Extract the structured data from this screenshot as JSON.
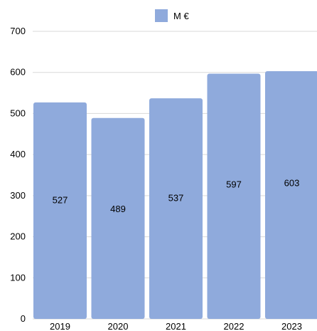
{
  "chart_data": {
    "type": "bar",
    "categories": [
      "2019",
      "2020",
      "2021",
      "2022",
      "2023"
    ],
    "series": [
      {
        "name": "M €",
        "values": [
          527,
          489,
          537,
          597,
          603
        ],
        "color": "#8faadc"
      }
    ],
    "data_labels": [
      "527",
      "489",
      "537",
      "597",
      "603"
    ],
    "ylim": [
      0,
      700
    ],
    "yticks": [
      0,
      100,
      200,
      300,
      400,
      500,
      600,
      700
    ],
    "ytick_labels": [
      "0",
      "100",
      "200",
      "300",
      "400",
      "500",
      "600",
      "700"
    ],
    "grid": true,
    "legend_position": "top-center",
    "colors": {
      "bar": "#8faadc",
      "grid": "#d9d9d9"
    }
  }
}
